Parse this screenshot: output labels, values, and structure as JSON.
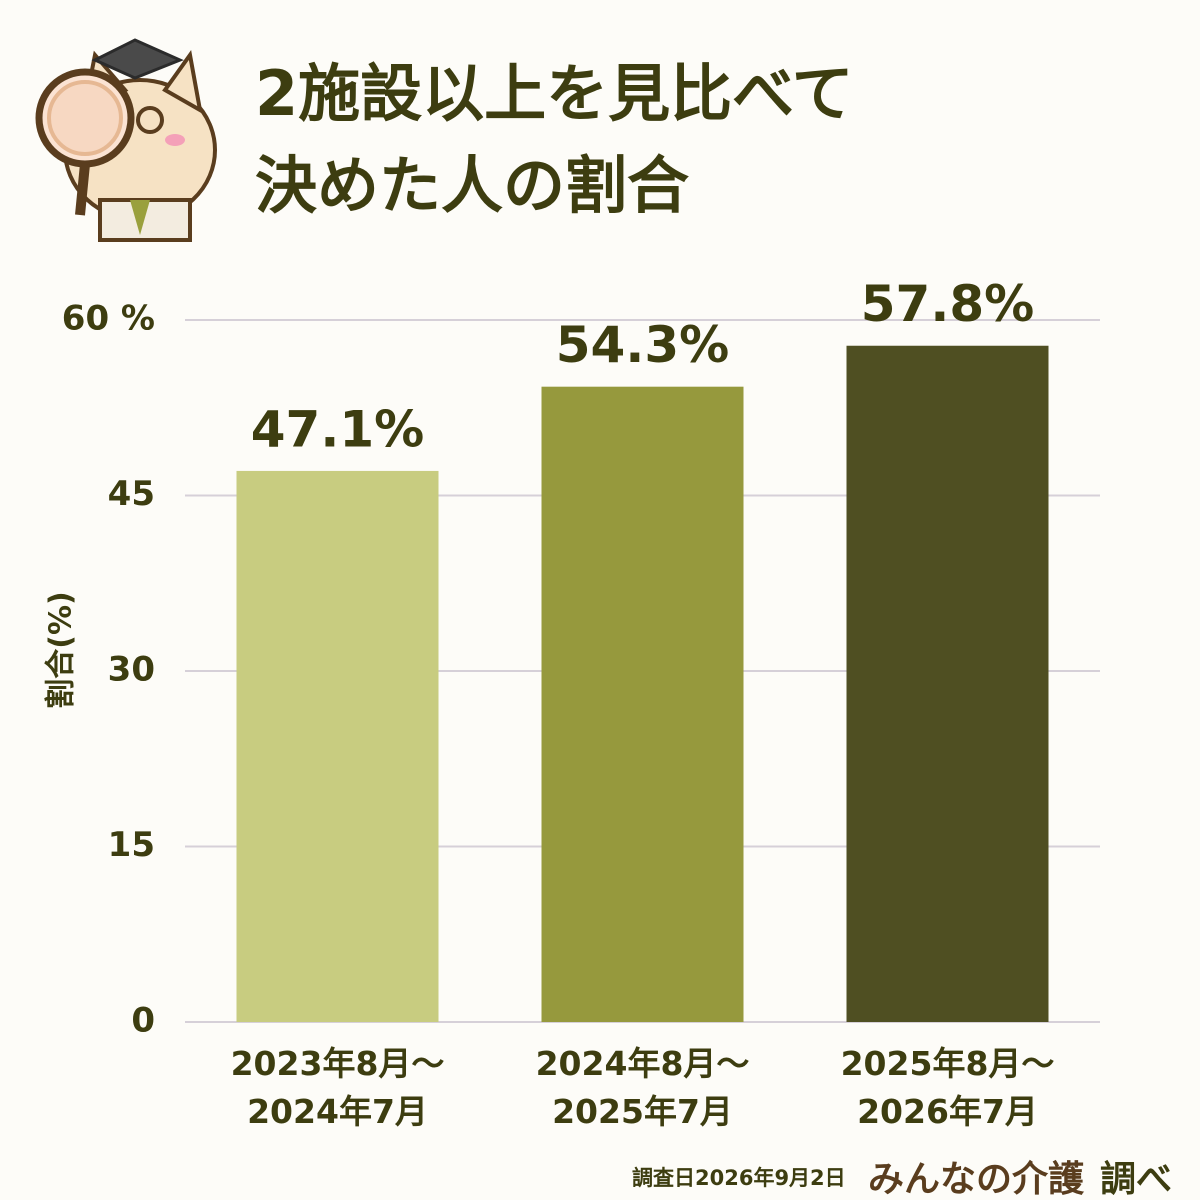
{
  "chart_data": {
    "type": "bar",
    "title": "2施設以上を見比べて\n決めた人の割合",
    "y_label": "割合(%)",
    "categories": [
      "2023年8月～\n2024年7月",
      "2024年8月～\n2025年7月",
      "2025年8月～\n2026年7月"
    ],
    "values": [
      47.1,
      54.3,
      57.8
    ],
    "value_labels": [
      "47.1%",
      "54.3%",
      "57.8%"
    ],
    "colors": [
      "#c8cc80",
      "#96993d",
      "#4f4f22"
    ],
    "ylim": [
      0,
      60
    ],
    "yticks": [
      0,
      15,
      30,
      45,
      {
        "value": 60,
        "label": "60 %"
      }
    ],
    "grid": true,
    "footnote": "調査日2026年9月2日",
    "brand": "みんなの介護",
    "brand_suffix": "調べ"
  }
}
